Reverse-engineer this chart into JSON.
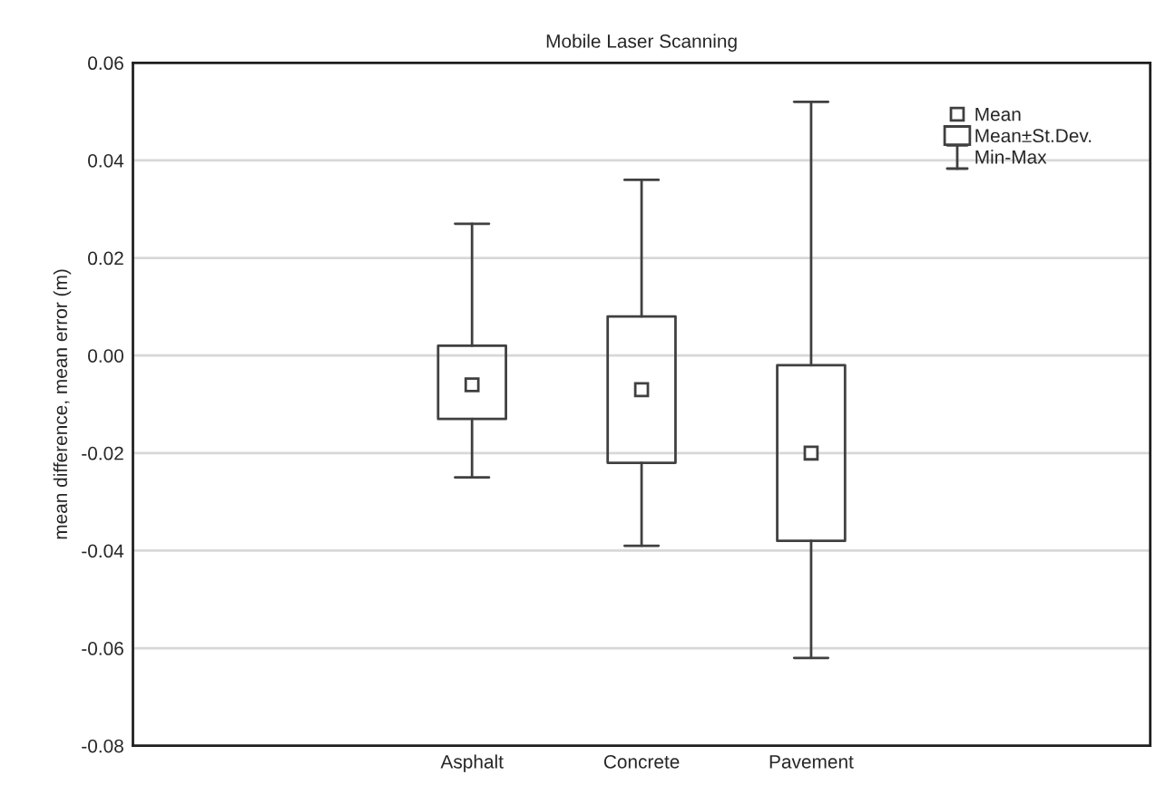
{
  "chart_data": {
    "type": "box",
    "title": "Mobile Laser Scanning",
    "ylabel": "mean difference, mean error (m)",
    "categories": [
      null,
      "Asphalt",
      "Concrete",
      "Pavement",
      null
    ],
    "boxes": [
      null,
      {
        "low": -0.025,
        "q1": -0.013,
        "q3": 0.002,
        "high": 0.027,
        "mean": -0.006
      },
      {
        "low": -0.039,
        "q1": -0.022,
        "q3": 0.008,
        "high": 0.036,
        "mean": -0.007
      },
      {
        "low": -0.062,
        "q1": -0.038,
        "q3": -0.002,
        "high": 0.052,
        "mean": -0.02
      },
      null
    ],
    "color": "#404040",
    "ylim": [
      -0.08,
      0.06
    ],
    "yticks": [
      -0.08,
      -0.06,
      -0.04,
      -0.02,
      {
        "value": 0,
        "label": "0.00"
      },
      0.02,
      0.04,
      0.06
    ],
    "grid": "y",
    "marker": "square",
    "annotations": [
      "Mean",
      "Mean±St.Dev.",
      "Min-Max"
    ]
  }
}
